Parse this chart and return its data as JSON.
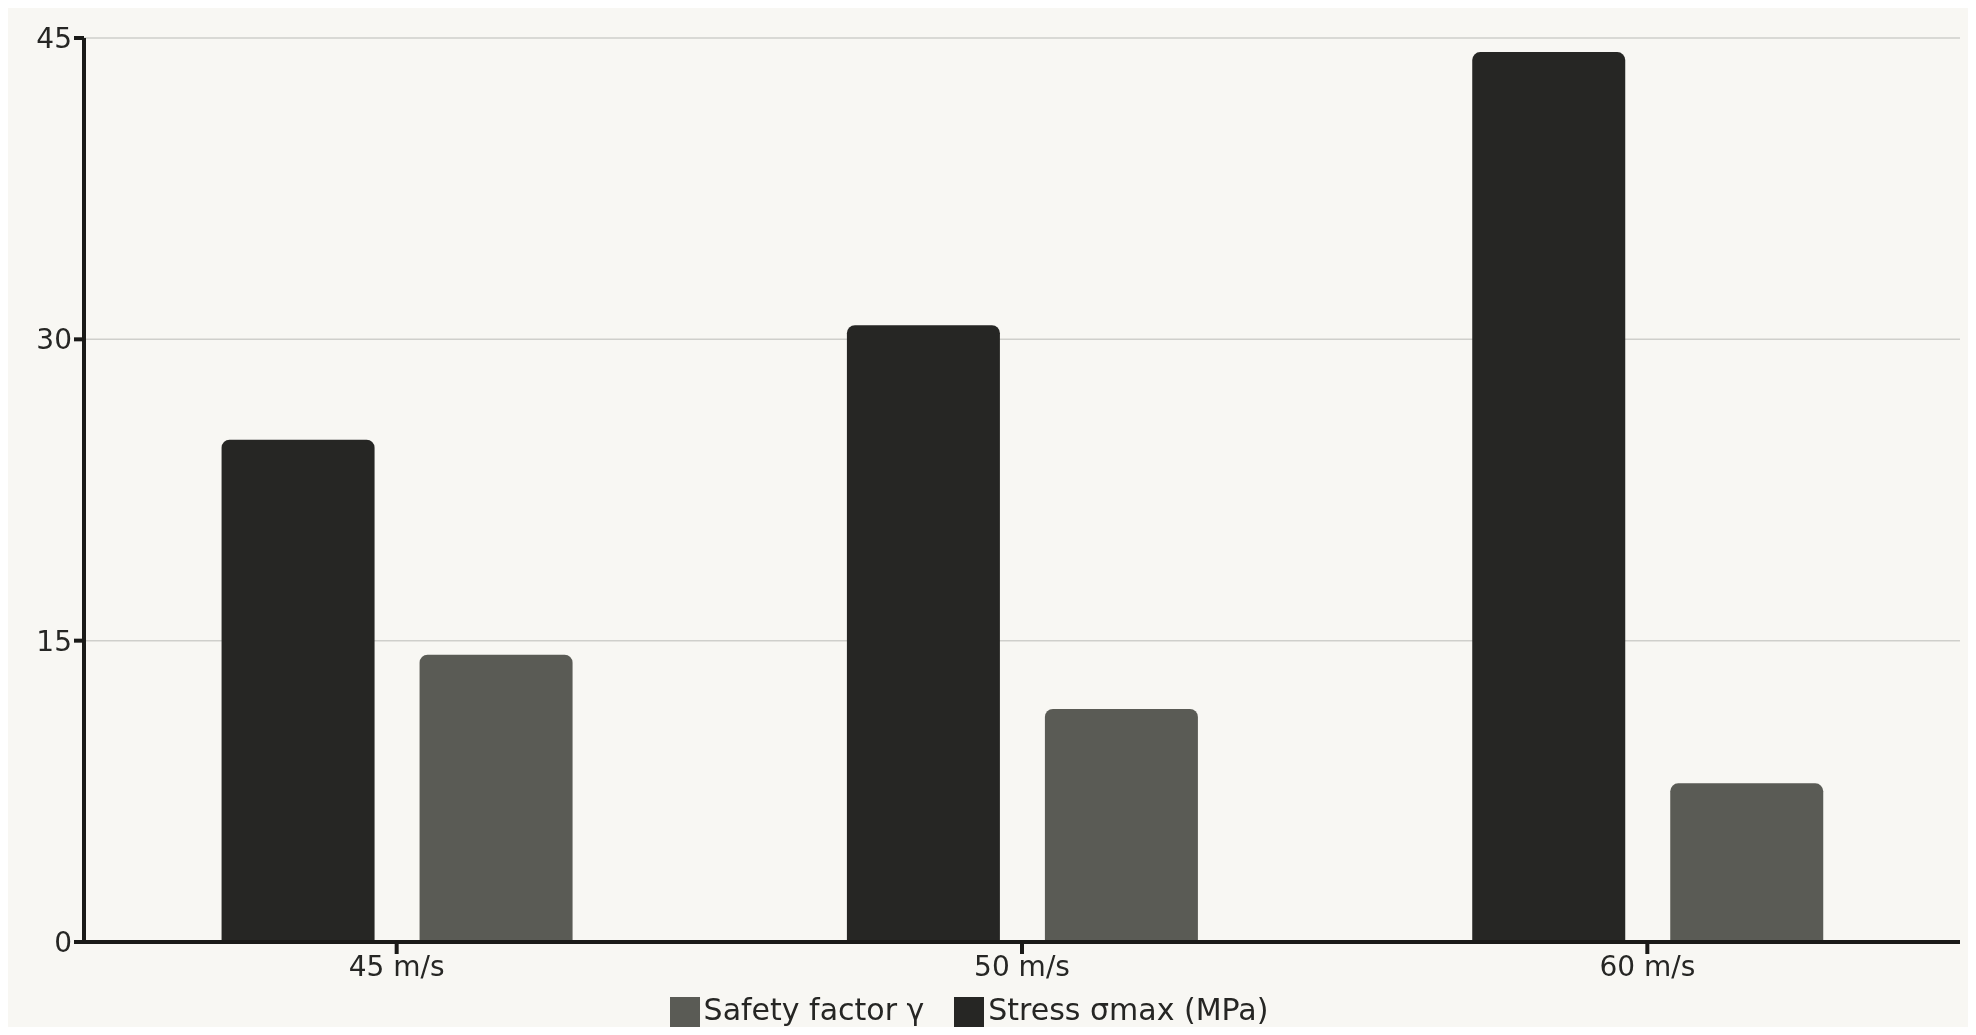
{
  "chart_data": {
    "type": "bar",
    "categories": [
      "45 m/s",
      "50 m/s",
      "60 m/s"
    ],
    "series": [
      {
        "name": "Stress σmax (MPa)",
        "color": "#262624",
        "values": [
          25,
          30.7,
          44.3
        ]
      },
      {
        "name": "Safety factor γ",
        "color": "#5a5b55",
        "values": [
          14.3,
          11.6,
          7.9
        ]
      }
    ],
    "ylim": [
      0,
      45
    ],
    "yticks": [
      0,
      15,
      30,
      45
    ],
    "grid": "y",
    "legend": "bottom"
  }
}
